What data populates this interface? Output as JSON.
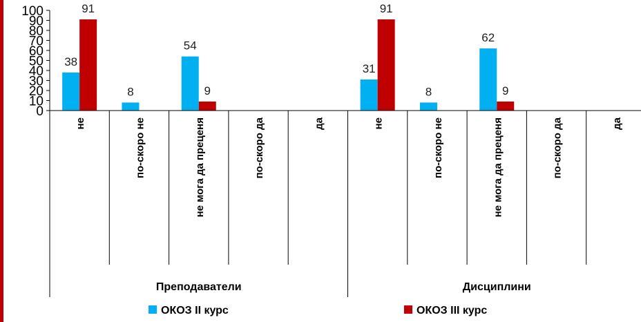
{
  "chart_data": {
    "type": "bar",
    "groups": [
      "Преподаватели",
      "Дисциплини"
    ],
    "categories": [
      "не",
      "по-скоро не",
      "не мога да преценя",
      "по-скоро да",
      "да",
      "не",
      "по-скоро не",
      "не мога да преценя",
      "по-скоро да",
      "да"
    ],
    "series": [
      {
        "name": "ОКОЗ II курс",
        "color": "#00B0F0",
        "values": [
          38,
          8,
          54,
          null,
          null,
          31,
          8,
          62,
          null,
          null
        ]
      },
      {
        "name": "ОКОЗ III курс",
        "color": "#C00000",
        "values": [
          91,
          null,
          9,
          null,
          null,
          91,
          null,
          9,
          null,
          null
        ]
      }
    ],
    "ylim": [
      0,
      100
    ],
    "yticks": [
      0,
      10,
      20,
      30,
      40,
      50,
      60,
      70,
      80,
      90,
      100
    ],
    "legend": "bottom",
    "grid": false
  },
  "accent_color": "#C00000"
}
